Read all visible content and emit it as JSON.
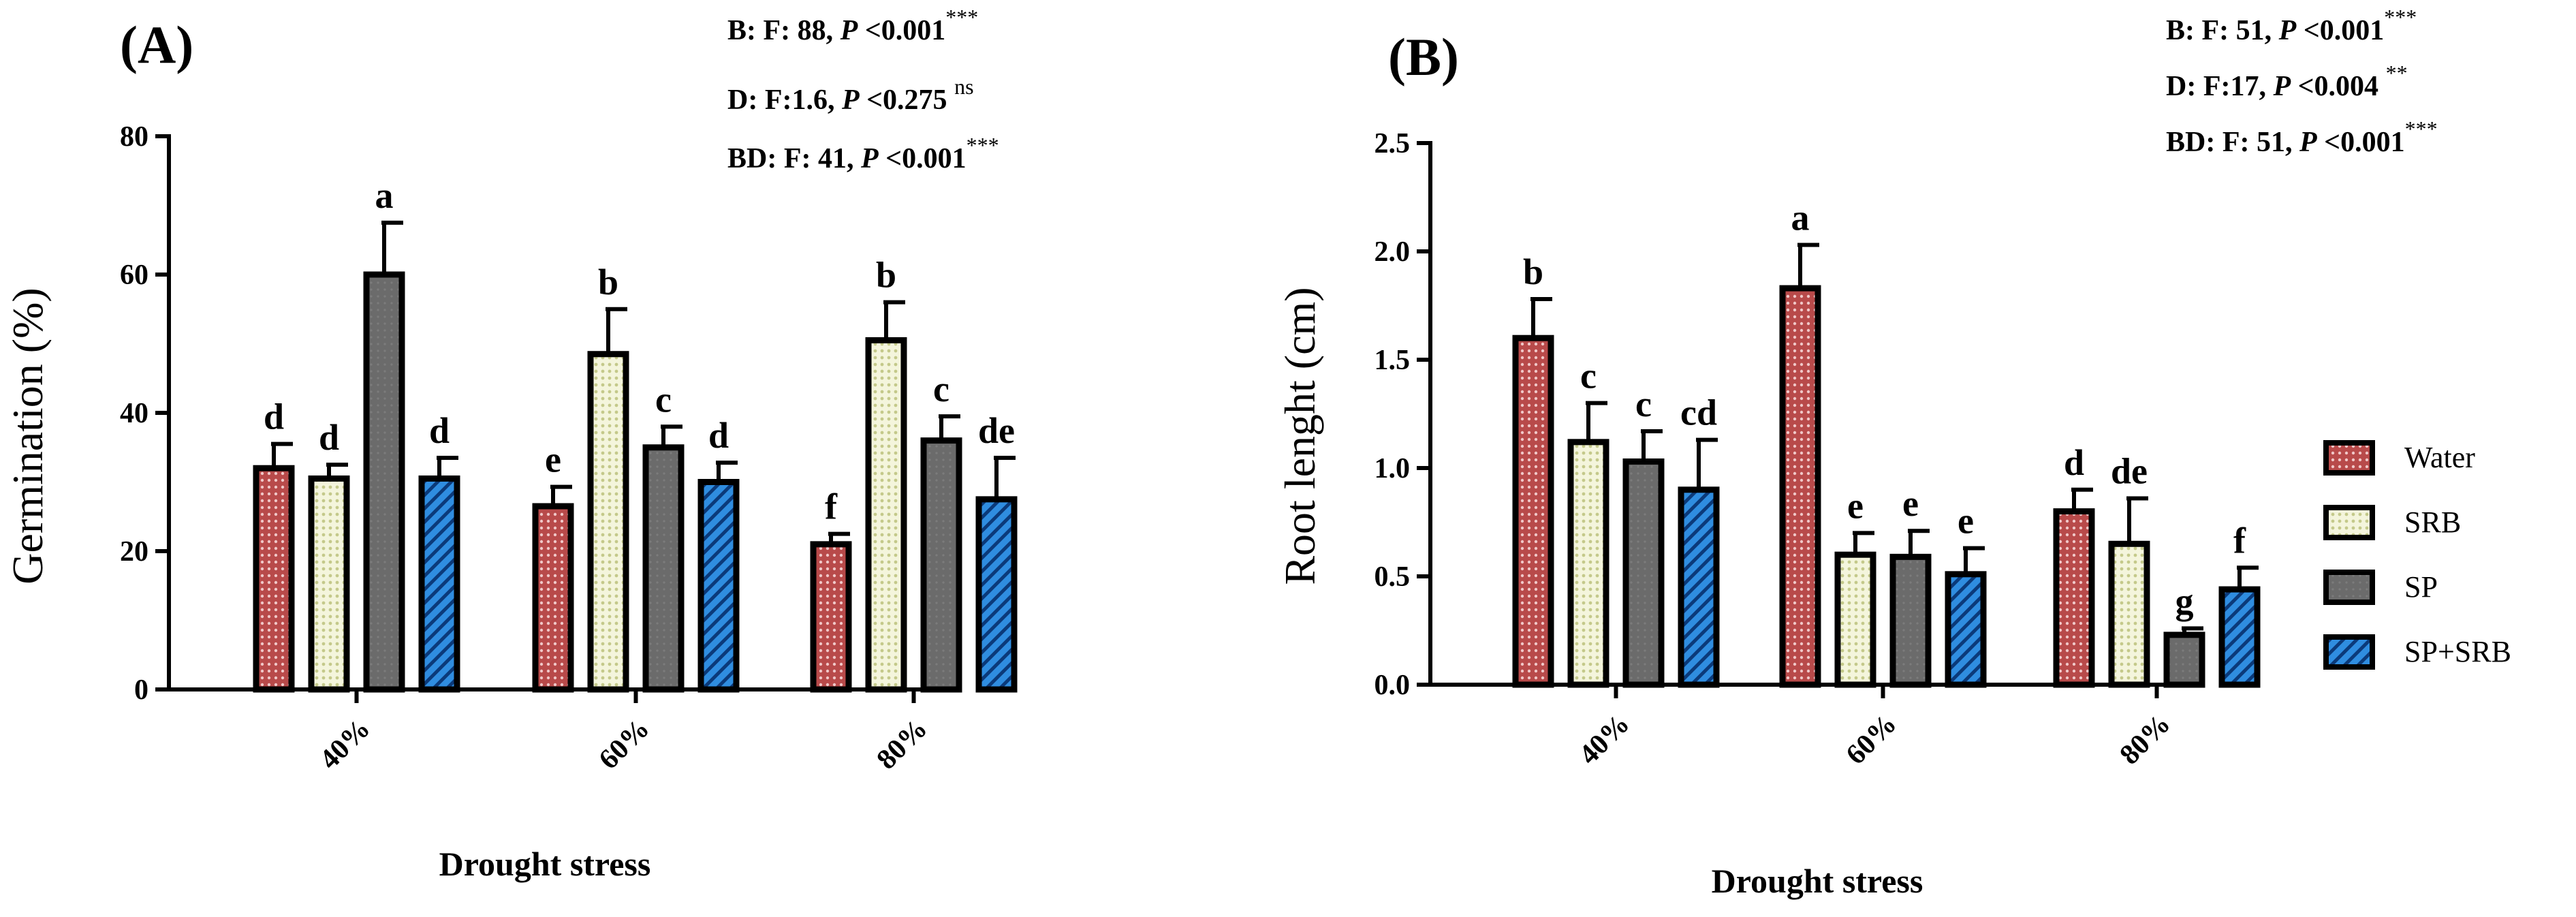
{
  "chart_data": [
    {
      "panel": "(A)",
      "type": "bar",
      "ylabel": "Germination (%)",
      "xlabel": "Drought stress",
      "ylim": [
        0,
        80
      ],
      "yticks": [
        "0",
        "20",
        "40",
        "60",
        "80"
      ],
      "categories": [
        "40%",
        "60%",
        "80%"
      ],
      "series": [
        {
          "name": "Water",
          "values": [
            32,
            26.5,
            21
          ],
          "errors": [
            3.5,
            2.8,
            1.5
          ],
          "letters": [
            "d",
            "e",
            "f"
          ]
        },
        {
          "name": "SRB",
          "values": [
            30.5,
            48.5,
            50.5
          ],
          "errors": [
            2,
            6.5,
            5.5
          ],
          "letters": [
            "d",
            "b",
            "b"
          ]
        },
        {
          "name": "SP",
          "values": [
            60,
            35,
            36
          ],
          "errors": [
            7.5,
            3,
            3.5
          ],
          "letters": [
            "a",
            "c",
            "c"
          ]
        },
        {
          "name": "SP+SRB",
          "values": [
            30.5,
            30,
            27.5
          ],
          "errors": [
            3,
            2.8,
            6
          ],
          "letters": [
            "d",
            "d",
            "de"
          ]
        }
      ],
      "stats": [
        {
          "text": "B: F: 88, ",
          "p": "P",
          "rest": " <0.001",
          "sig": "***"
        },
        {
          "text": "D: F:1.6, ",
          "p": "P",
          "rest": " <0.275 ",
          "sig": "ns"
        },
        {
          "text": "BD: F: 41, ",
          "p": "P",
          "rest": " <0.001",
          "sig": "***"
        }
      ]
    },
    {
      "panel": "(B)",
      "type": "bar",
      "ylabel": "Root lenght (cm)",
      "xlabel": "Drought stress",
      "ylim": [
        0,
        2.5
      ],
      "yticks": [
        "0.0",
        "0.5",
        "1.0",
        "1.5",
        "2.0",
        "2.5"
      ],
      "categories": [
        "40%",
        "60%",
        "80%"
      ],
      "series": [
        {
          "name": "Water",
          "values": [
            1.6,
            1.83,
            0.8
          ],
          "errors": [
            0.18,
            0.2,
            0.1
          ],
          "letters": [
            "b",
            "a",
            "d"
          ]
        },
        {
          "name": "SRB",
          "values": [
            1.12,
            0.6,
            0.65
          ],
          "errors": [
            0.18,
            0.1,
            0.21
          ],
          "letters": [
            "c",
            "e",
            "de"
          ]
        },
        {
          "name": "SP",
          "values": [
            1.03,
            0.59,
            0.23
          ],
          "errors": [
            0.14,
            0.12,
            0.03
          ],
          "letters": [
            "c",
            "e",
            "g"
          ]
        },
        {
          "name": "SP+SRB",
          "values": [
            0.9,
            0.51,
            0.44
          ],
          "errors": [
            0.23,
            0.12,
            0.1
          ],
          "letters": [
            "cd",
            "e",
            "f"
          ]
        }
      ],
      "stats": [
        {
          "text": "B: F: 51, ",
          "p": "P",
          "rest": " <0.001",
          "sig": "***"
        },
        {
          "text": "D: F:17, ",
          "p": "P",
          "rest": " <0.004 ",
          "sig": "**"
        },
        {
          "text": "BD: F: 51, ",
          "p": "P",
          "rest": " <0.001",
          "sig": "***"
        }
      ]
    }
  ],
  "legend": [
    "Water",
    "SRB",
    "SP",
    "SP+SRB"
  ],
  "colors": {
    "water": "#b84a4a",
    "srb": "#eef0c8",
    "sp": "#6b6b6b",
    "sp_srb": "#2f8de0",
    "axis": "#000000"
  }
}
